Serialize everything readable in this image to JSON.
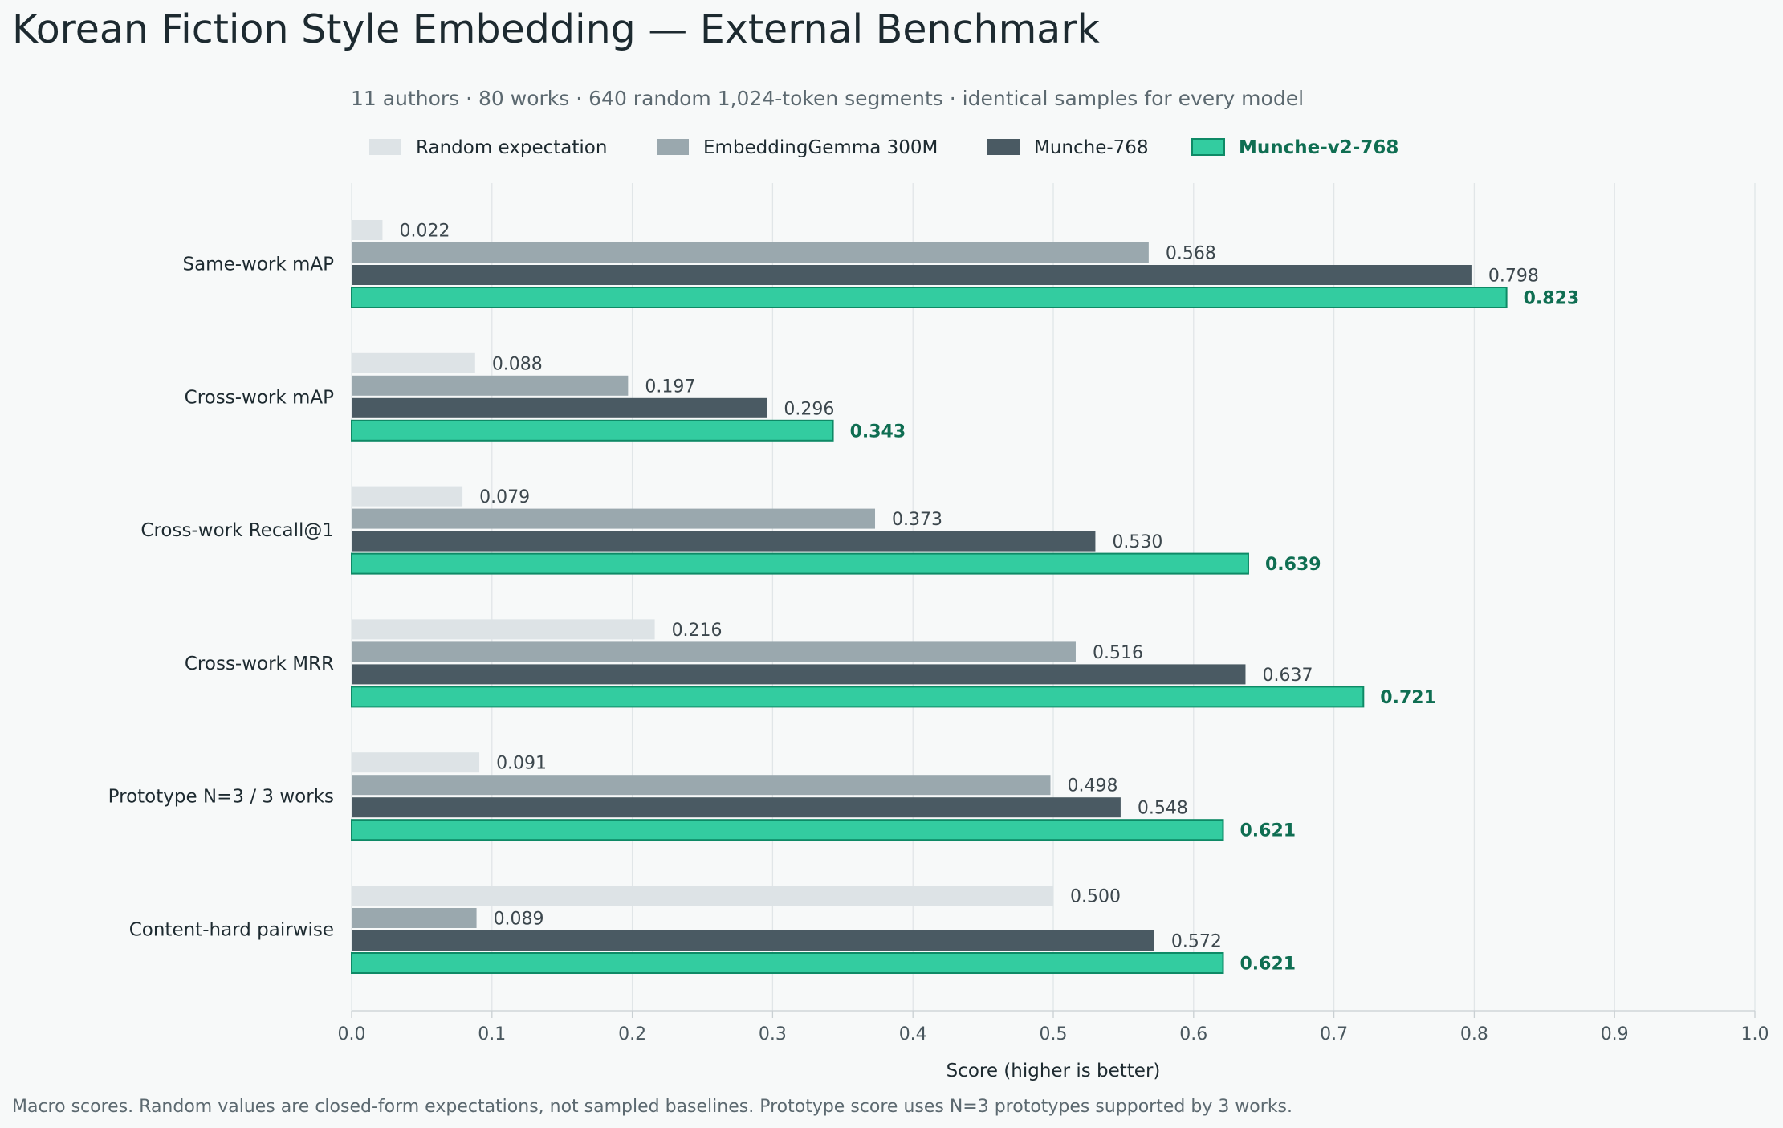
{
  "chart_data": {
    "type": "bar",
    "orientation": "horizontal",
    "title": "Korean Fiction Style Embedding — External Benchmark",
    "subtitle": "11 authors · 80 works · 640 random 1,024-token segments · identical samples for every model",
    "xlabel": "Score (higher is better)",
    "ylabel": "",
    "xlim": [
      0,
      1.0
    ],
    "xticks": [
      "0.0",
      "0.1",
      "0.2",
      "0.3",
      "0.4",
      "0.5",
      "0.6",
      "0.7",
      "0.8",
      "0.9",
      "1.0"
    ],
    "grid": "vertical",
    "legend_position": "top",
    "categories": [
      "Same-work mAP",
      "Cross-work mAP",
      "Cross-work Recall@1",
      "Cross-work MRR",
      "Prototype N=3 / 3 works",
      "Content-hard pairwise"
    ],
    "series": [
      {
        "name": "Random expectation",
        "color": "#dde3e6",
        "emphasis": false,
        "values": [
          0.022,
          0.088,
          0.079,
          0.216,
          0.091,
          0.5
        ],
        "labels": [
          "0.022",
          "0.088",
          "0.079",
          "0.216",
          "0.091",
          "0.500"
        ]
      },
      {
        "name": "EmbeddingGemma 300M",
        "color": "#9aa8ae",
        "emphasis": false,
        "values": [
          0.568,
          0.197,
          0.373,
          0.516,
          0.498,
          0.089
        ],
        "labels": [
          "0.568",
          "0.197",
          "0.373",
          "0.516",
          "0.498",
          "0.089"
        ]
      },
      {
        "name": "Munche-768",
        "color": "#4a5a63",
        "emphasis": false,
        "values": [
          0.798,
          0.296,
          0.53,
          0.637,
          0.548,
          0.572
        ],
        "labels": [
          "0.798",
          "0.296",
          "0.530",
          "0.637",
          "0.548",
          "0.572"
        ]
      },
      {
        "name": "Munche-v2-768",
        "color": "#33cca0",
        "emphasis": true,
        "values": [
          0.823,
          0.343,
          0.639,
          0.721,
          0.621,
          0.621
        ],
        "labels": [
          "0.823",
          "0.343",
          "0.639",
          "0.721",
          "0.621",
          "0.621"
        ]
      }
    ],
    "footnote": "Macro scores. Random values are closed-form expectations, not sampled baselines. Prototype score uses N=3 prototypes supported by 3 works."
  },
  "colors": {
    "background": "#f7f9f9",
    "title_text": "#1d2a30",
    "muted_text": "#5c6970",
    "axis_text": "#49575e",
    "value_text": "#3c474d",
    "grid": "#e1e6e8",
    "emphasis_text": "#0f6e52",
    "emphasis_stroke": "#0e8a66"
  }
}
